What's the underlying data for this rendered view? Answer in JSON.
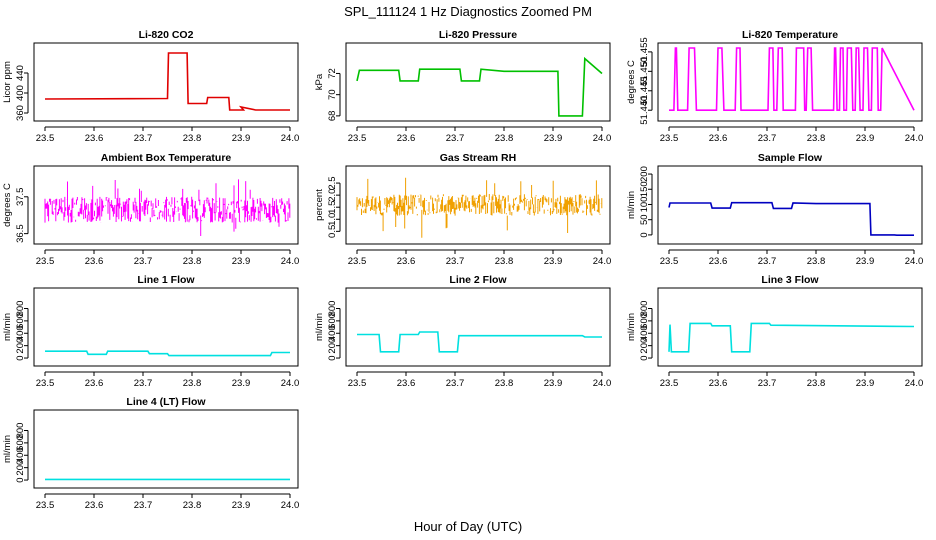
{
  "figure": {
    "title": "SPL_111124  1 Hz Diagnostics Zoomed PM",
    "xlabel": "Hour of Day (UTC)"
  },
  "chart_data": [
    {
      "type": "line",
      "title": "Li-820 CO2",
      "ylabel": "Licor ppm",
      "color": "#e00000",
      "style": "step",
      "render": "line",
      "xlim": [
        23.5,
        24.0
      ],
      "xticks": [
        23.5,
        23.6,
        23.7,
        23.8,
        23.9,
        24.0
      ],
      "xtick_labels": [
        "23.5",
        "23.6",
        "23.7",
        "23.8",
        "23.9",
        "24.0"
      ],
      "ylim": [
        350,
        490
      ],
      "yticks": [
        360,
        400,
        440
      ],
      "ytick_labels": [
        "360",
        "400",
        "440"
      ],
      "series": [
        {
          "x": [
            23.5,
            23.75,
            23.752,
            23.79,
            23.792,
            23.83,
            23.832,
            23.875,
            23.877,
            23.905,
            23.9,
            23.93,
            23.95,
            24.0
          ],
          "y": [
            388,
            389,
            480,
            480,
            379,
            379,
            391,
            391,
            366,
            366,
            372,
            366,
            366,
            366
          ]
        }
      ]
    },
    {
      "type": "line",
      "title": "Li-820 Pressure",
      "ylabel": "kPa",
      "color": "#00c000",
      "style": "step",
      "render": "line",
      "xlim": [
        23.5,
        24.0
      ],
      "xticks": [
        23.5,
        23.6,
        23.7,
        23.8,
        23.9,
        24.0
      ],
      "xtick_labels": [
        "23.5",
        "23.6",
        "23.7",
        "23.8",
        "23.9",
        "24.0"
      ],
      "ylim": [
        67.8,
        74.4
      ],
      "yticks": [
        68,
        70,
        72
      ],
      "ytick_labels": [
        "68",
        "70",
        "72"
      ],
      "series": [
        {
          "x": [
            23.5,
            23.505,
            23.585,
            23.588,
            23.625,
            23.628,
            23.71,
            23.713,
            23.75,
            23.753,
            23.8,
            23.91,
            23.912,
            23.96,
            23.965,
            24.0
          ],
          "y": [
            71.3,
            72.3,
            72.3,
            71.3,
            71.3,
            72.4,
            72.4,
            71.3,
            71.3,
            72.4,
            72.2,
            72.2,
            68.0,
            68.0,
            73.4,
            72.0
          ]
        }
      ]
    },
    {
      "type": "line",
      "title": "Li-820 Temperature",
      "ylabel": "degrees C",
      "color": "#ff00ff",
      "style": "spikes",
      "render": "line",
      "xlim": [
        23.5,
        24.0
      ],
      "xticks": [
        23.5,
        23.6,
        23.7,
        23.8,
        23.9,
        24.0
      ],
      "xtick_labels": [
        "23.5",
        "23.6",
        "23.7",
        "23.8",
        "23.9",
        "24.0"
      ],
      "ylim": [
        51.438,
        51.456
      ],
      "yticks": [
        51.44,
        51.445,
        51.45,
        51.455
      ],
      "ytick_labels": [
        "51.440",
        "51.445",
        "51.450",
        "51.455"
      ],
      "series": [
        {
          "x": [
            23.5,
            23.51,
            23.513,
            23.515,
            23.518,
            23.538,
            23.541,
            23.552,
            23.556,
            23.597,
            23.6,
            23.608,
            23.612,
            23.635,
            23.638,
            23.645,
            23.647,
            23.702,
            23.705,
            23.712,
            23.714,
            23.72,
            23.723,
            23.731,
            23.733,
            23.758,
            23.76,
            23.775,
            23.777,
            23.78,
            23.783,
            23.79,
            23.793,
            23.836,
            23.838,
            23.84,
            23.843,
            23.848,
            23.85,
            23.855,
            23.857,
            23.862,
            23.864,
            23.872,
            23.875,
            23.88,
            23.882,
            23.887,
            23.89,
            23.896,
            23.898,
            23.905,
            23.908,
            23.913,
            23.915,
            23.925,
            23.927,
            23.932,
            23.935,
            24.0
          ],
          "y": [
            51.44,
            51.44,
            51.456,
            51.456,
            51.44,
            51.44,
            51.456,
            51.456,
            51.44,
            51.44,
            51.456,
            51.456,
            51.44,
            51.44,
            51.456,
            51.456,
            51.44,
            51.44,
            51.456,
            51.456,
            51.44,
            51.44,
            51.456,
            51.456,
            51.44,
            51.44,
            51.456,
            51.456,
            51.44,
            51.44,
            51.456,
            51.456,
            51.44,
            51.44,
            51.456,
            51.456,
            51.44,
            51.44,
            51.456,
            51.456,
            51.44,
            51.44,
            51.456,
            51.456,
            51.44,
            51.44,
            51.456,
            51.456,
            51.44,
            51.44,
            51.456,
            51.456,
            51.44,
            51.44,
            51.456,
            51.456,
            51.44,
            51.44,
            51.456,
            51.44
          ]
        }
      ]
    },
    {
      "type": "line",
      "title": "Ambient Box Temperature",
      "ylabel": "degrees C",
      "color": "#ff00ff",
      "style": "noisy",
      "render": "band",
      "xlim": [
        23.5,
        24.0
      ],
      "xticks": [
        23.5,
        23.6,
        23.7,
        23.8,
        23.9,
        24.0
      ],
      "xtick_labels": [
        "23.5",
        "23.6",
        "23.7",
        "23.8",
        "23.9",
        "24.0"
      ],
      "ylim": [
        36.3,
        38.2
      ],
      "yticks": [
        36.5,
        37.5
      ],
      "ytick_labels": [
        "36.5",
        "37.5"
      ],
      "series": [
        {
          "x": [
            23.5,
            24.0
          ],
          "y": [
            37.15,
            37.15
          ],
          "spread": 0.35,
          "min": 36.4,
          "max": 38.0
        }
      ]
    },
    {
      "type": "line",
      "title": "Gas Stream RH",
      "ylabel": "percent",
      "color": "#f0a000",
      "style": "noisy",
      "render": "band",
      "xlim": [
        23.5,
        24.0
      ],
      "xticks": [
        23.5,
        23.6,
        23.7,
        23.8,
        23.9,
        24.0
      ],
      "xtick_labels": [
        "23.5",
        "23.6",
        "23.7",
        "23.8",
        "23.9",
        "24.0"
      ],
      "ylim": [
        0.1,
        3.0
      ],
      "yticks": [
        0.5,
        1.0,
        1.5,
        2.0,
        2.5
      ],
      "ytick_labels": [
        "0.5",
        "1.0",
        "1.5",
        "2.0",
        "2.5"
      ],
      "series": [
        {
          "x": [
            23.5,
            24.0
          ],
          "y": [
            1.6,
            1.6
          ],
          "spread": 0.45,
          "min": 0.2,
          "max": 2.9
        }
      ]
    },
    {
      "type": "line",
      "title": "Sample Flow",
      "ylabel": "ml/min",
      "color": "#0000c0",
      "style": "step",
      "render": "line",
      "xlim": [
        23.5,
        24.0
      ],
      "xticks": [
        23.5,
        23.6,
        23.7,
        23.8,
        23.9,
        24.0
      ],
      "xtick_labels": [
        "23.5",
        "23.6",
        "23.7",
        "23.8",
        "23.9",
        "24.0"
      ],
      "ylim": [
        -20,
        210
      ],
      "yticks": [
        0,
        50,
        100,
        150,
        200
      ],
      "ytick_labels": [
        "0",
        "50",
        "100",
        "150",
        "200"
      ],
      "series": [
        {
          "x": [
            23.5,
            23.502,
            23.585,
            23.588,
            23.625,
            23.628,
            23.71,
            23.713,
            23.75,
            23.753,
            23.8,
            23.91,
            23.912,
            23.96,
            23.965,
            24.0
          ],
          "y": [
            90,
            105,
            105,
            88,
            88,
            106,
            106,
            87,
            87,
            105,
            103,
            103,
            0,
            0,
            -1,
            -1
          ]
        }
      ]
    },
    {
      "type": "line",
      "title": "Line 1 Flow",
      "ylabel": "ml/min",
      "color": "#00e0e0",
      "style": "step",
      "render": "line",
      "xlim": [
        23.5,
        24.0
      ],
      "xticks": [
        23.5,
        23.6,
        23.7,
        23.8,
        23.9,
        24.0
      ],
      "xtick_labels": [
        "23.5",
        "23.6",
        "23.7",
        "23.8",
        "23.9",
        "24.0"
      ],
      "ylim": [
        -80,
        1050
      ],
      "yticks": [
        0,
        200,
        400,
        600,
        800
      ],
      "ytick_labels": [
        "0",
        "200",
        "400",
        "600",
        "800"
      ],
      "series": [
        {
          "x": [
            23.5,
            23.585,
            23.588,
            23.625,
            23.628,
            23.71,
            23.713,
            23.75,
            23.753,
            23.96,
            23.963,
            24.0
          ],
          "y": [
            110,
            110,
            60,
            60,
            110,
            110,
            70,
            70,
            40,
            40,
            90,
            90
          ]
        }
      ]
    },
    {
      "type": "line",
      "title": "Line 2 Flow",
      "ylabel": "ml/min",
      "color": "#00e0e0",
      "style": "step",
      "render": "line",
      "xlim": [
        23.5,
        24.0
      ],
      "xticks": [
        23.5,
        23.6,
        23.7,
        23.8,
        23.9,
        24.0
      ],
      "xtick_labels": [
        "23.5",
        "23.6",
        "23.7",
        "23.8",
        "23.9",
        "24.0"
      ],
      "ylim": [
        -80,
        1050
      ],
      "yticks": [
        0,
        200,
        400,
        600,
        800
      ],
      "ytick_labels": [
        "0",
        "200",
        "400",
        "600",
        "800"
      ],
      "series": [
        {
          "x": [
            23.5,
            23.545,
            23.548,
            23.585,
            23.588,
            23.625,
            23.628,
            23.665,
            23.668,
            23.705,
            23.708,
            23.96,
            23.965,
            24.0
          ],
          "y": [
            380,
            380,
            100,
            100,
            380,
            380,
            420,
            420,
            100,
            100,
            360,
            360,
            340,
            340
          ]
        }
      ]
    },
    {
      "type": "line",
      "title": "Line 3 Flow",
      "ylabel": "ml/min",
      "color": "#00e0e0",
      "style": "step",
      "render": "line",
      "xlim": [
        23.5,
        24.0
      ],
      "xticks": [
        23.5,
        23.6,
        23.7,
        23.8,
        23.9,
        24.0
      ],
      "xtick_labels": [
        "23.5",
        "23.6",
        "23.7",
        "23.8",
        "23.9",
        "24.0"
      ],
      "ylim": [
        -80,
        1050
      ],
      "yticks": [
        0,
        200,
        400,
        600,
        800
      ],
      "ytick_labels": [
        "0",
        "200",
        "400",
        "600",
        "800"
      ],
      "series": [
        {
          "x": [
            23.5,
            23.502,
            23.505,
            23.54,
            23.543,
            23.585,
            23.588,
            23.625,
            23.628,
            23.665,
            23.668,
            23.705,
            23.708,
            24.0
          ],
          "y": [
            100,
            540,
            100,
            100,
            560,
            560,
            520,
            520,
            100,
            100,
            560,
            560,
            530,
            510
          ]
        }
      ]
    },
    {
      "type": "line",
      "title": "Line 4 (LT) Flow",
      "ylabel": "ml/min",
      "color": "#00e0e0",
      "style": "step",
      "render": "line",
      "xlim": [
        23.5,
        24.0
      ],
      "xticks": [
        23.5,
        23.6,
        23.7,
        23.8,
        23.9,
        24.0
      ],
      "xtick_labels": [
        "23.5",
        "23.6",
        "23.7",
        "23.8",
        "23.9",
        "24.0"
      ],
      "ylim": [
        -80,
        1050
      ],
      "yticks": [
        0,
        200,
        400,
        600,
        800
      ],
      "ytick_labels": [
        "0",
        "200",
        "400",
        "600",
        "800"
      ],
      "series": [
        {
          "x": [
            23.5,
            24.0
          ],
          "y": [
            10,
            10
          ]
        }
      ]
    }
  ]
}
